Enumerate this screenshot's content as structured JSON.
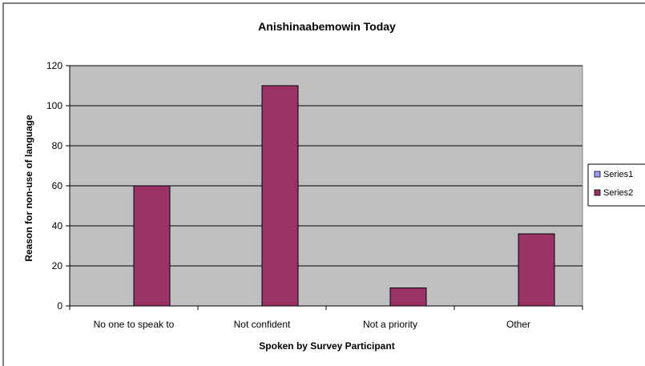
{
  "chart_data": {
    "type": "bar",
    "title": "Anishinaabemowin Today",
    "xlabel": "Spoken by Survey Participant",
    "ylabel": "Reason for non-use of language",
    "categories": [
      "No one to speak to",
      "Not confident",
      "Not a priority",
      "Other"
    ],
    "series": [
      {
        "name": "Series1",
        "values": [
          0,
          0,
          0,
          0
        ],
        "color": "#9999ff"
      },
      {
        "name": "Series2",
        "values": [
          60,
          110,
          9,
          36
        ],
        "color": "#993366"
      }
    ],
    "ylim": [
      0,
      120
    ],
    "yticks": [
      0,
      20,
      40,
      60,
      80,
      100,
      120
    ],
    "grid": true,
    "plot_background": "#c0c0c0",
    "legend": "right"
  }
}
